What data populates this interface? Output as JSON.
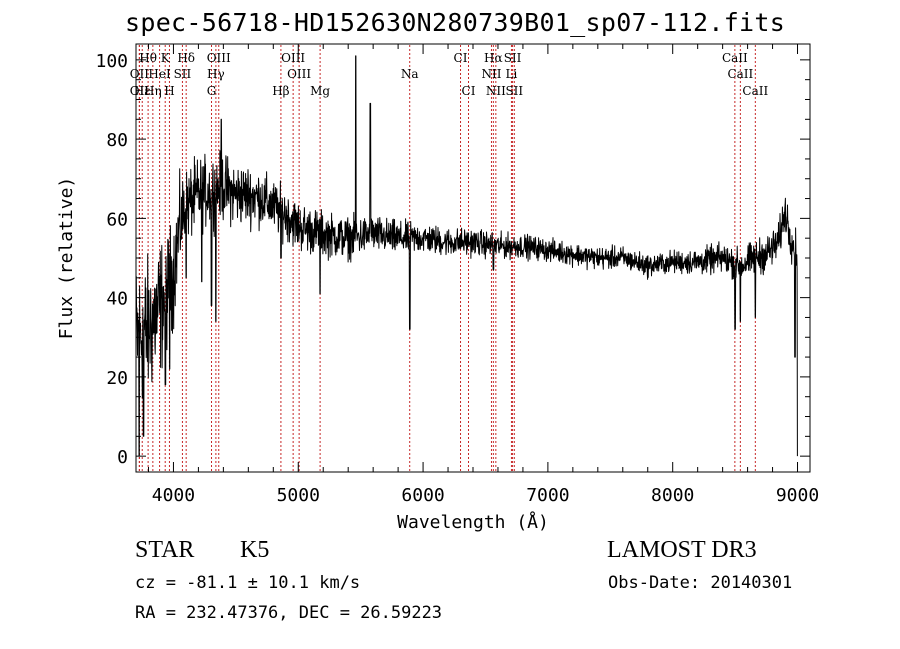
{
  "chart_data": {
    "type": "line",
    "title": "spec-56718-HD152630N280739B01_sp07-112.fits",
    "xlabel": "Wavelength (Å)",
    "ylabel": "Flux (relative)",
    "xlim": [
      3700,
      9100
    ],
    "ylim": [
      -4,
      104
    ],
    "x_ticks": [
      4000,
      5000,
      6000,
      7000,
      8000,
      9000
    ],
    "x_tick_labels": [
      "4000",
      "5000",
      "6000",
      "7000",
      "8000",
      "9000"
    ],
    "y_ticks": [
      0,
      20,
      40,
      60,
      80,
      100
    ],
    "y_tick_labels": [
      "0",
      "20",
      "40",
      "60",
      "80",
      "100"
    ],
    "grid": false,
    "series": [
      {
        "name": "flux",
        "color": "#000000",
        "continuum": {
          "x": [
            3700,
            3800,
            3900,
            4000,
            4050,
            4100,
            4200,
            4300,
            4400,
            4500,
            4600,
            4700,
            4800,
            4900,
            5000,
            5200,
            5400,
            5600,
            5800,
            6000,
            6200,
            6400,
            6600,
            6800,
            7000,
            7200,
            7400,
            7600,
            7800,
            8000,
            8200,
            8400,
            8550,
            8650,
            8750,
            8850,
            8900,
            8950,
            9000
          ],
          "y": [
            30,
            32,
            38,
            46,
            58,
            63,
            66,
            67,
            68,
            66,
            66,
            65,
            63,
            61,
            58,
            56,
            55,
            56,
            55,
            55,
            54,
            54,
            53,
            53,
            52,
            51,
            50,
            50,
            48,
            49,
            49,
            50,
            48,
            50,
            51,
            54,
            62,
            55,
            50
          ]
        },
        "noise_amplitude": {
          "x": [
            3700,
            3900,
            4100,
            4400,
            4800,
            5200,
            6000,
            7000,
            8000,
            8800,
            9000
          ],
          "y": [
            20,
            18,
            10,
            9,
            7,
            6,
            4,
            3,
            3,
            5,
            6
          ]
        },
        "features": [
          {
            "x": 3725,
            "y": 0
          },
          {
            "x": 3760,
            "y": 5
          },
          {
            "x": 3935,
            "y": 18
          },
          {
            "x": 3970,
            "y": 22
          },
          {
            "x": 4102,
            "y": 45
          },
          {
            "x": 4227,
            "y": 44
          },
          {
            "x": 4305,
            "y": 38
          },
          {
            "x": 4340,
            "y": 34
          },
          {
            "x": 4383,
            "y": 85
          },
          {
            "x": 4861,
            "y": 50
          },
          {
            "x": 5175,
            "y": 42
          },
          {
            "x": 5175,
            "y": 41
          },
          {
            "x": 5460,
            "y": 101
          },
          {
            "x": 5577,
            "y": 89
          },
          {
            "x": 5893,
            "y": 32
          },
          {
            "x": 6563,
            "y": 47
          },
          {
            "x": 8500,
            "y": 32
          },
          {
            "x": 8542,
            "y": 34
          },
          {
            "x": 8662,
            "y": 35
          },
          {
            "x": 8980,
            "y": 25
          },
          {
            "x": 9000,
            "y": 0
          }
        ]
      }
    ],
    "line_marker_color": "#c62828",
    "line_markers": [
      {
        "label": "Hθ",
        "x": 3797,
        "row": 1
      },
      {
        "label": "OII",
        "x": 3727,
        "row": 2
      },
      {
        "label": "OII",
        "x": 3727,
        "row": 3
      },
      {
        "label": "Hε",
        "x": 3750,
        "row": 3
      },
      {
        "label": "K",
        "x": 3934,
        "row": 1
      },
      {
        "label": "HeI",
        "x": 3889,
        "row": 2
      },
      {
        "label": "Hη",
        "x": 3835,
        "row": 3
      },
      {
        "label": "H",
        "x": 3968,
        "row": 3
      },
      {
        "label": "Hδ",
        "x": 4102,
        "row": 1
      },
      {
        "label": "SII",
        "x": 4072,
        "row": 2
      },
      {
        "label": "OIII",
        "x": 4363,
        "row": 1
      },
      {
        "label": "Hγ",
        "x": 4340,
        "row": 2
      },
      {
        "label": "G",
        "x": 4305,
        "row": 3
      },
      {
        "label": "OIII",
        "x": 4959,
        "row": 1
      },
      {
        "label": "OIII",
        "x": 5007,
        "row": 2
      },
      {
        "label": "Hβ",
        "x": 4861,
        "row": 3
      },
      {
        "label": "Mg",
        "x": 5175,
        "row": 3
      },
      {
        "label": "Na",
        "x": 5893,
        "row": 2
      },
      {
        "label": "CI",
        "x": 6300,
        "row": 1
      },
      {
        "label": "CI",
        "x": 6364,
        "row": 3
      },
      {
        "label": "Hα",
        "x": 6563,
        "row": 1
      },
      {
        "label": "SII",
        "x": 6717,
        "row": 1
      },
      {
        "label": "NII",
        "x": 6548,
        "row": 2
      },
      {
        "label": "Li",
        "x": 6708,
        "row": 2
      },
      {
        "label": "NII",
        "x": 6583,
        "row": 3
      },
      {
        "label": "SII",
        "x": 6731,
        "row": 3
      },
      {
        "label": "CaII",
        "x": 8498,
        "row": 1
      },
      {
        "label": "CaII",
        "x": 8542,
        "row": 2
      },
      {
        "label": "CaII",
        "x": 8662,
        "row": 3
      }
    ]
  },
  "info": {
    "object_class": "STAR",
    "subclass": "K5",
    "survey": "LAMOST DR3",
    "redshift": "cz = -81.1 ± 10.1 km/s",
    "obs_date": "Obs-Date: 20140301",
    "coords": "RA = 232.47376, DEC =  26.59223"
  }
}
